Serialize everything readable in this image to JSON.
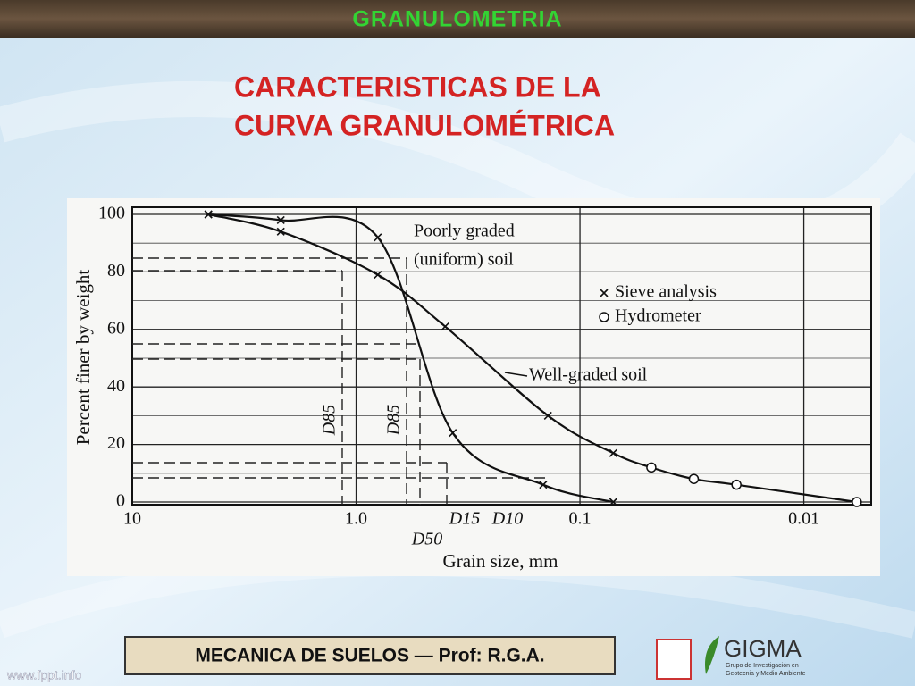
{
  "slide": {
    "header": "GRANULOMETRIA",
    "title_lines": [
      "CARACTERISTICAS DE LA",
      "CURVA GRANULOMÉTRICA"
    ],
    "footer": "MECANICA DE SUELOS — Prof: R.G.A.",
    "website": "www.fppt.info",
    "logo": {
      "name": "GIGMA",
      "subtitle_lines": [
        "Grupo de Investigación en",
        "Geotecnia y Medio Ambiente"
      ]
    }
  },
  "chart_data": {
    "type": "line",
    "xlabel": "Grain size, mm",
    "ylabel": "Percent finer by weight",
    "log_x": true,
    "xlim": [
      10,
      0.005
    ],
    "ylim": [
      0,
      100
    ],
    "xticks": [
      10,
      {
        "value": 1,
        "label": "1.0"
      },
      0.1,
      0.01
    ],
    "yticks": [
      0,
      20,
      40,
      60,
      80,
      100
    ],
    "grid": true,
    "series": [
      {
        "color": "#111111",
        "x": [
          4.57,
          2.17,
          0.8,
          0.37,
          0.146,
          0.071
        ],
        "values": [
          100,
          98,
          92,
          24,
          6,
          0
        ],
        "markers": [
          "x",
          "x",
          "x",
          "x",
          "x",
          "x"
        ]
      },
      {
        "color": "#111111",
        "x": [
          4.57,
          2.17,
          0.8,
          0.4,
          0.139,
          0.071,
          0.048,
          0.031,
          0.02,
          0.0058
        ],
        "values": [
          100,
          94,
          79,
          61,
          30,
          17,
          12,
          8,
          6,
          0
        ],
        "markers": [
          "x",
          "x",
          "x",
          "x",
          "x",
          "x",
          "o",
          "o",
          "o",
          "o"
        ]
      }
    ],
    "legend": [
      {
        "marker": "x",
        "label": "Sieve analysis"
      },
      {
        "marker": "o",
        "label": "Hydrometer"
      }
    ],
    "annotations": [
      "Poorly graded",
      "(uniform) soil",
      "Well-graded soil"
    ],
    "d_labels": [
      "D85",
      "D85",
      "D50",
      "D15",
      "D10"
    ]
  }
}
